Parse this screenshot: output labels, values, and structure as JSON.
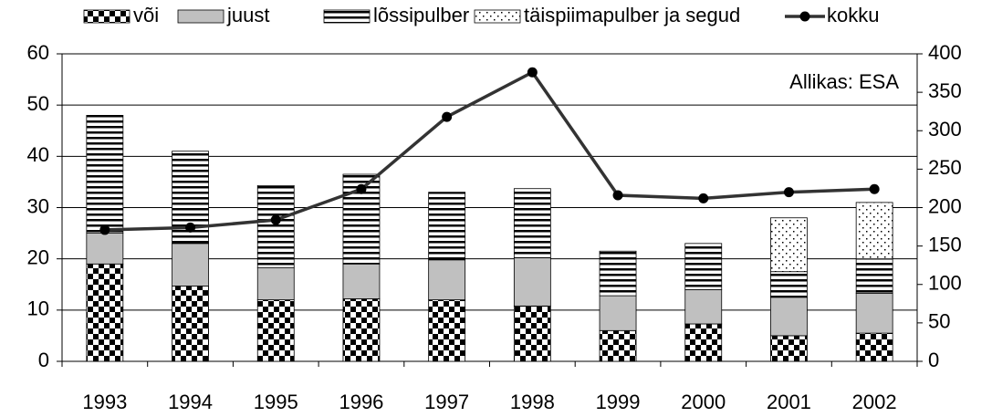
{
  "chart_data": {
    "type": "bar",
    "categories": [
      "1993",
      "1994",
      "1995",
      "1996",
      "1997",
      "1998",
      "1999",
      "2000",
      "2001",
      "2002"
    ],
    "series": [
      {
        "name": "või",
        "color": "#000000",
        "pattern": "checker",
        "values": [
          19,
          14.7,
          12,
          12.2,
          12,
          10.8,
          6,
          7.3,
          5,
          5.5
        ]
      },
      {
        "name": "juust",
        "color": "#c0c0c0",
        "pattern": "solid",
        "values": [
          6,
          8.3,
          6.3,
          6.8,
          7.8,
          9.4,
          6.8,
          6.7,
          7.5,
          7.8
        ]
      },
      {
        "name": "lõssipulber",
        "color": "#000000",
        "pattern": "hlines",
        "values": [
          23,
          18,
          16,
          17.5,
          13.2,
          13.5,
          8.7,
          9,
          5,
          6.7
        ]
      },
      {
        "name": "täispiimapulber ja segud",
        "color": "#000000",
        "pattern": "dots",
        "values": [
          0,
          0,
          0,
          0,
          0,
          0,
          0,
          0,
          10.5,
          11
        ]
      },
      {
        "name": "kokku",
        "type": "line",
        "axis": "y2",
        "color": "#333333",
        "values": [
          171,
          174,
          184,
          224,
          318,
          376,
          216,
          212,
          220,
          224
        ]
      }
    ],
    "stacked": true,
    "annotation": "Allikas: ESA",
    "ylim": [
      0,
      60
    ],
    "yticks": [
      0,
      10,
      20,
      30,
      40,
      50,
      60
    ],
    "y2lim": [
      0,
      400
    ],
    "y2ticks": [
      0,
      50,
      100,
      150,
      200,
      250,
      300,
      350,
      400
    ],
    "grid": true,
    "legend": "top"
  }
}
